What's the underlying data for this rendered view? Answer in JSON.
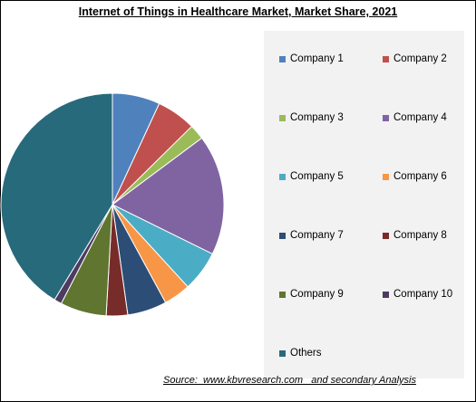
{
  "title": "Internet of Things in Healthcare  Market, Market Share, 2021",
  "source": "Source:  www.kbvresearch.com   and secondary Analysis",
  "chart_data": {
    "type": "pie",
    "start_angle_deg": 0,
    "direction": "clockwise",
    "legend_position": "right",
    "series": [
      {
        "name": "Company 1",
        "value": 6.9,
        "color": "#4f81bd"
      },
      {
        "name": "Company 2",
        "value": 5.7,
        "color": "#c0504d"
      },
      {
        "name": "Company 3",
        "value": 2.2,
        "color": "#9bbb59"
      },
      {
        "name": "Company 4",
        "value": 17.5,
        "color": "#8064a2"
      },
      {
        "name": "Company 5",
        "value": 5.9,
        "color": "#4bacc6"
      },
      {
        "name": "Company 6",
        "value": 3.9,
        "color": "#f79646"
      },
      {
        "name": "Company 7",
        "value": 5.7,
        "color": "#2c4d75"
      },
      {
        "name": "Company 8",
        "value": 3.1,
        "color": "#772c2a"
      },
      {
        "name": "Company 9",
        "value": 6.7,
        "color": "#5f7530"
      },
      {
        "name": "Company 10",
        "value": 1.1,
        "color": "#4d3b62"
      },
      {
        "name": "Others",
        "value": 41.3,
        "color": "#276a7c"
      }
    ]
  }
}
